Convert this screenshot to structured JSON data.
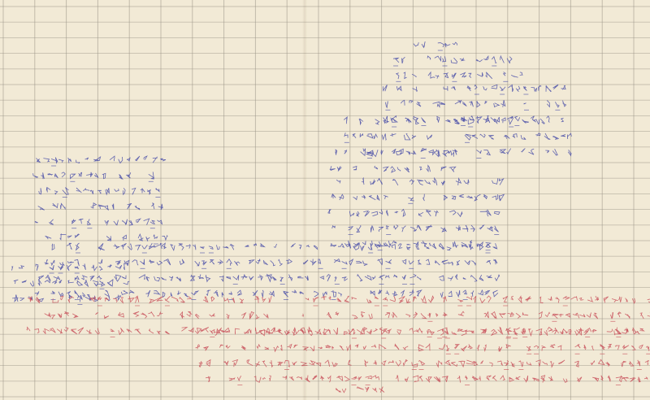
{
  "document": {
    "kind": "handwritten grid sheet",
    "colors": {
      "paper": "#f2ead6",
      "grid": "#9a9487",
      "ink_blue": "#4a4fa8",
      "ink_red": "#c8505a"
    }
  }
}
